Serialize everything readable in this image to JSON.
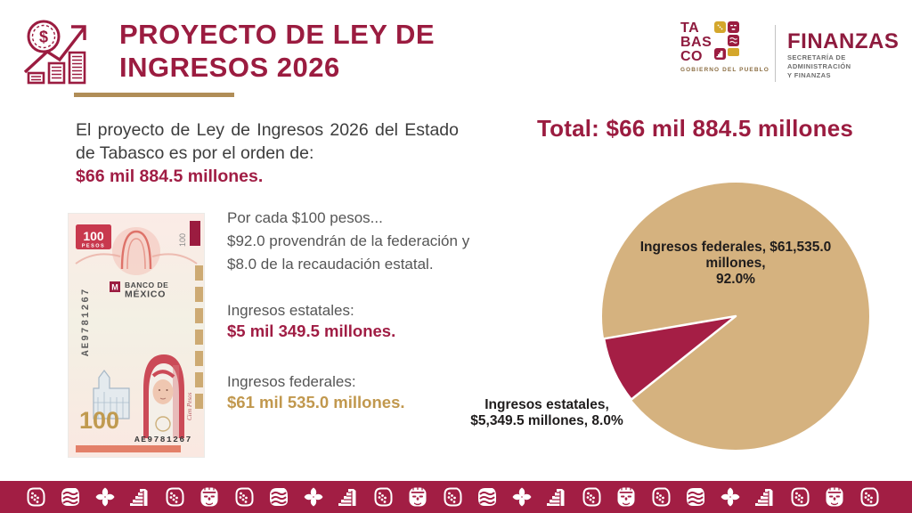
{
  "header": {
    "title_lines": [
      "PROYECTO DE LEY DE",
      "INGRESOS 2026"
    ],
    "logo": {
      "brand_lines": [
        "TA",
        "BAS",
        "CO"
      ],
      "tagline": "GOBIERNO DEL PUEBLO",
      "agency_name": "FINANZAS",
      "agency_sub_lines": [
        "SECRETARÍA DE ADMINISTRACIÓN",
        "Y FINANZAS"
      ]
    }
  },
  "intro": {
    "text": "El proyecto de Ley de Ingresos 2026 del Estado de Tabasco es por el orden de:",
    "amount": "$66 mil 884.5 millones."
  },
  "banknote": {
    "corner_value": "100",
    "corner_unit": "PESOS",
    "bank_lines": [
      "BANCO DE",
      "MÉXICO"
    ],
    "serial_vertical": "AE9781267",
    "big_value": "100",
    "serial_bottom": "AE9781267",
    "denomination_text": "Cien Pesos"
  },
  "breakdown": {
    "per_hundred_lines": [
      "Por cada $100 pesos...",
      "$92.0 provendrán de la federación y",
      "$8.0 de la recaudación estatal."
    ],
    "estatales_label": "Ingresos estatales:",
    "estatales_amount": "$5 mil 349.5 millones.",
    "federales_label": "Ingresos federales:",
    "federales_amount": "$61 mil 535.0 millones."
  },
  "total_heading": "Total: $66 mil 884.5 millones",
  "chart_data": {
    "type": "pie",
    "title": "Total: $66 mil 884.5 millones",
    "total_value_millones": 66884.5,
    "legend": "none",
    "slice_border_color": "#FFFFFF",
    "slices": [
      {
        "name": "Ingresos federales",
        "value_millones": 61535.0,
        "percent": 92.0,
        "color": "#D5B27F",
        "label_lines": [
          "Ingresos federales, $61,535.0",
          "millones,",
          "92.0%"
        ],
        "label_position": "inside-upper"
      },
      {
        "name": "Ingresos estatales",
        "value_millones": 5349.5,
        "percent": 8.0,
        "color": "#A51E45",
        "label_lines": [
          "Ingresos estatales,",
          "$5,349.5 millones, 8.0%"
        ],
        "label_position": "outside-lower-left"
      }
    ]
  },
  "footer": {
    "glyph_cycle": [
      "cacao-pod",
      "waves",
      "flower",
      "pyramid",
      "cacao-pod",
      "olmec-head"
    ],
    "glyph_count": 25
  },
  "colors": {
    "maroon": "#9B1C40",
    "wedge_red": "#A51E45",
    "tan": "#D5B27F",
    "gold_underline": "#B08D57",
    "gold_text": "#C1984E",
    "footer_bg": "#A21E44",
    "body_text": "#3D3D3D",
    "muted_text": "#565656"
  }
}
